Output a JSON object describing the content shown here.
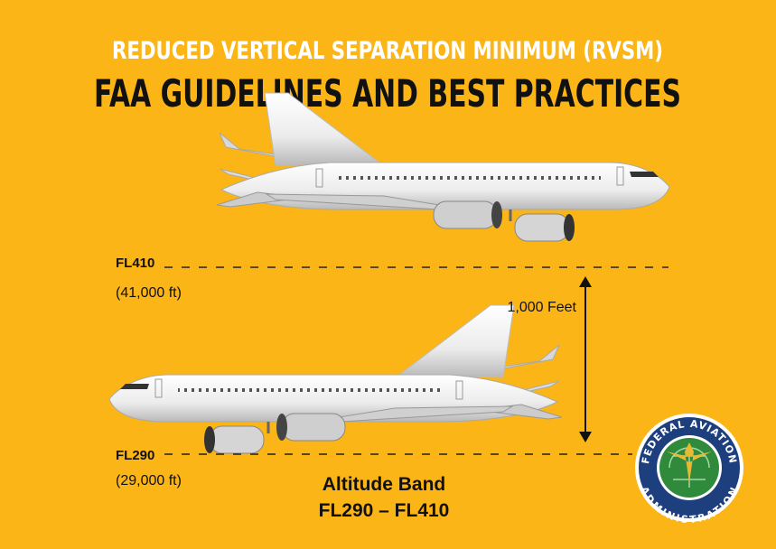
{
  "header": {
    "line1": "REDUCED VERTICAL SEPARATION MINIMUM (RVSM)",
    "line2": "FAA GUIDELINES AND BEST PRACTICES"
  },
  "levels": [
    {
      "label": "FL410",
      "altitude": "(41,000 ft)"
    },
    {
      "label": "FL290",
      "altitude": "(29,000 ft)"
    }
  ],
  "separation": "1,000 Feet",
  "band": {
    "title": "Altitude Band",
    "range": "FL290 – FL410"
  },
  "seal": {
    "top": "FEDERAL AVIATION",
    "bottom": "ADMINISTRATION"
  }
}
